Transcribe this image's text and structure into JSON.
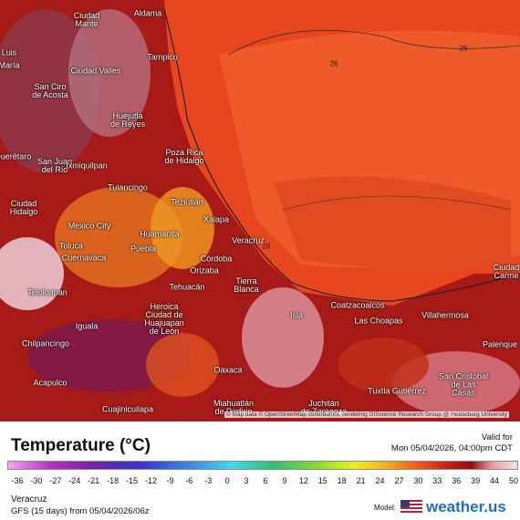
{
  "map": {
    "labels": [
      "Ciudad\nMante",
      "Aldama",
      "Tampico",
      "Luis",
      "María",
      "Ciudad Valles",
      "San Ciro\nde Acosta",
      "Huejutla\nde Reyes",
      "Poza Rica\nde Hidalgo",
      "Querétaro",
      "San Juan\ndel Río",
      "Ixmiquilpan",
      "Tulancingo",
      "Ciudad\nHidalgo",
      "Teziutlán",
      "Xalapa",
      "Mexico City",
      "Huamantla",
      "Toluca",
      "Puebla",
      "Veracruz",
      "Cuernavaca",
      "Córdoba",
      "Orizaba",
      "Tehuacán",
      "Tierra\nBlanca",
      "Teloloapan",
      "Heroica\nCiudad de\nHuajuapan\nde León",
      "Iguala",
      "Chilpancingo",
      "Isla",
      "Coatzacoalcos",
      "Las Choapas",
      "Villahermosa",
      "Ciudad\nCarme",
      "Palenque",
      "Acapulco",
      "Oaxaca",
      "San Cristóbal\nde Las\nCasas",
      "Tuxtla Gutiérrez",
      "Miahuatlán\nde Porfirio",
      "Juchitán\nde Zaragoza",
      "Cuajinicuilapa"
    ],
    "contours": [
      "26",
      "28",
      "26"
    ],
    "attribution": "© Map data © OpenStreetMap contributors, rendering GIScience Research Group @ Heidelberg University"
  },
  "legend": {
    "title": "Temperature (°C)",
    "valid_label": "Valid for",
    "valid_time": "Mon 05/04/2026, 04:00pm CDT",
    "ticks": [
      -36,
      -30,
      -27,
      -24,
      -21,
      -18,
      -15,
      -12,
      -9,
      -6,
      -3,
      0,
      3,
      6,
      9,
      12,
      15,
      18,
      21,
      24,
      27,
      30,
      33,
      36,
      39,
      44,
      50
    ]
  },
  "footer": {
    "region": "Veracruz",
    "run": "GFS (15 days) from 05/04/2026/06z",
    "model_label": "Model:",
    "brand": "weather.us"
  }
}
